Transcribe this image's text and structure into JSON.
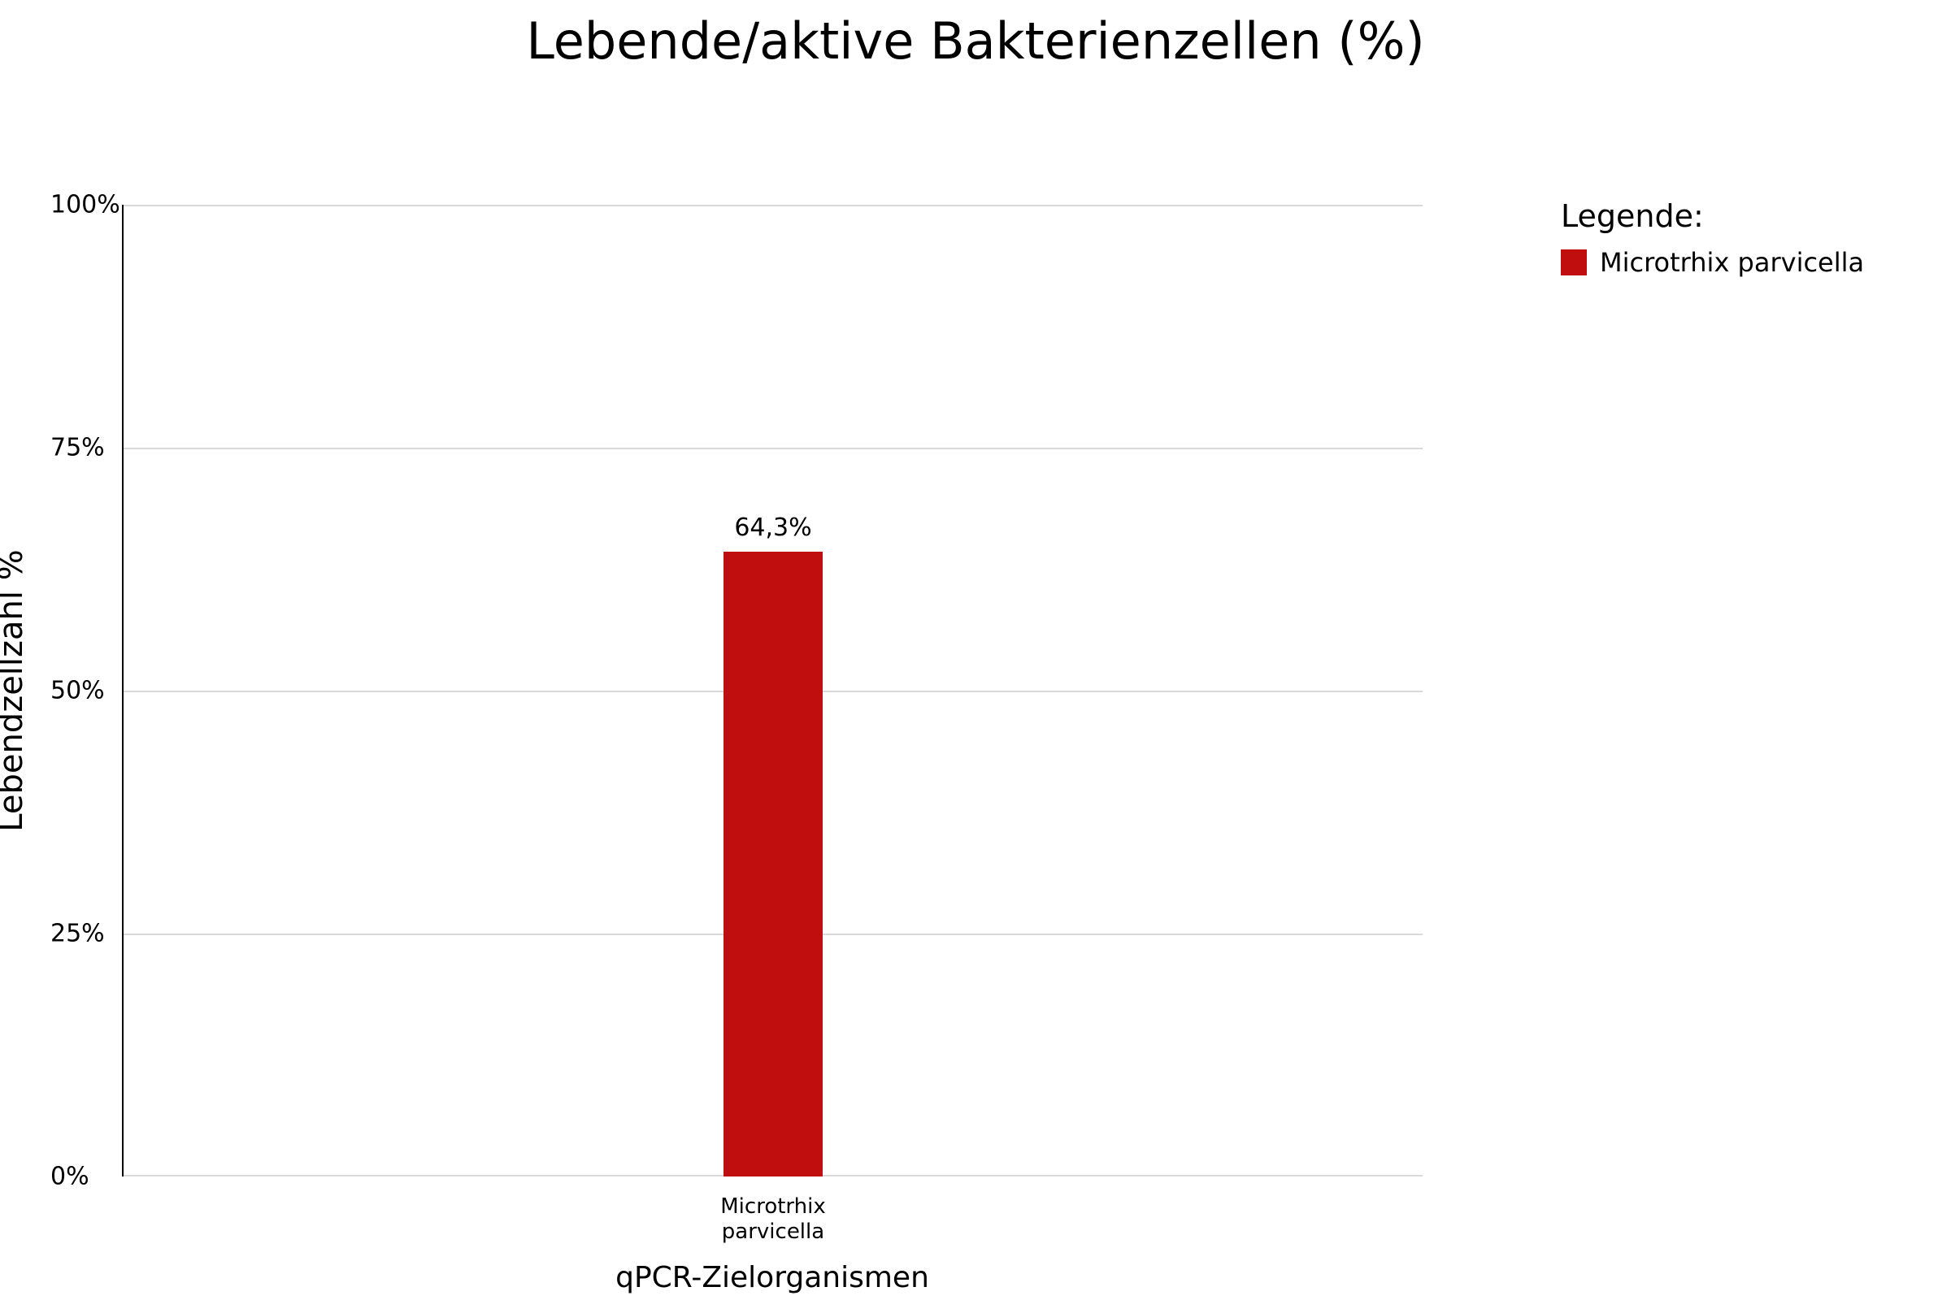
{
  "chart_data": {
    "type": "bar",
    "title": "Lebende/aktive Bakterienzellen (%)",
    "categories": [
      "Microtrhix parvicella"
    ],
    "values": [
      64.3
    ],
    "value_labels": [
      "64,3%"
    ],
    "xlabel": "qPCR-Zielorganismen",
    "ylabel": "Lebendzellzahl %",
    "ylim": [
      0,
      100
    ],
    "yticks": [
      "0%",
      "25%",
      "50%",
      "75%",
      "100%"
    ],
    "x_tick_multiline": "Microtrhix\nparvicella",
    "grid": "horizontal-on",
    "legend_position": "right",
    "bar_color": "#c00d0d",
    "gridline_color": "#d9d9d9",
    "background_color": "#ffffff"
  },
  "legend": {
    "heading": "Legende:",
    "items": [
      {
        "label": "Microtrhix parvicella",
        "color": "#c00d0d"
      }
    ]
  }
}
